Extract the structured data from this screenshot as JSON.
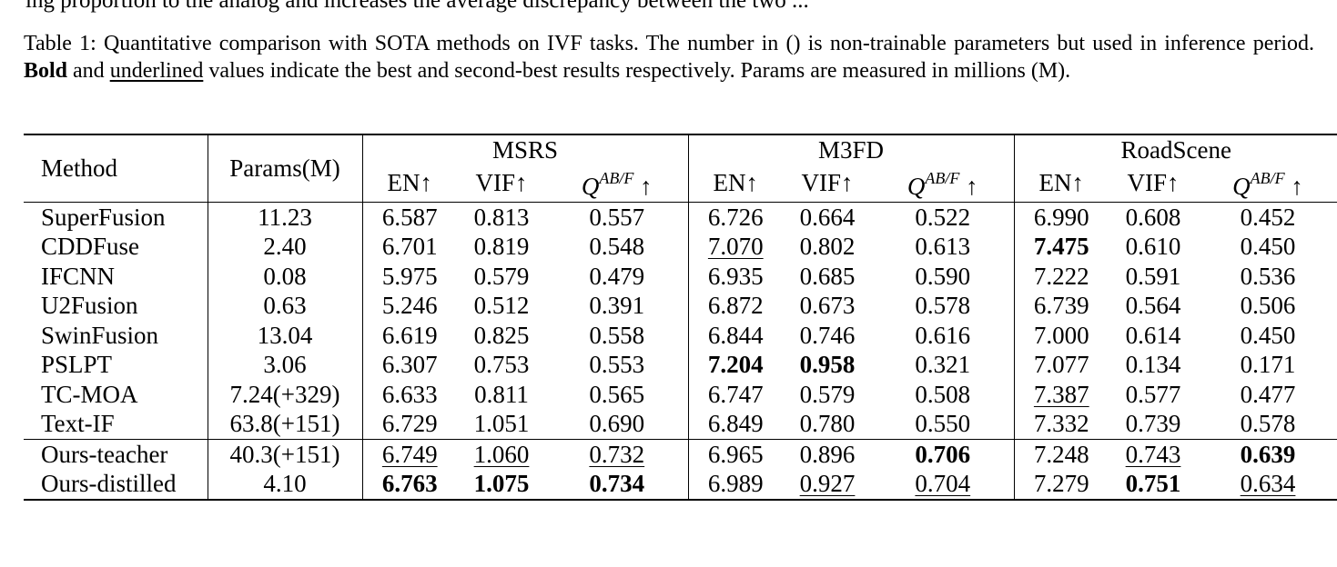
{
  "cropped_prev_line": "ing proportion to the analog and increases the average discrepancy between the two ...",
  "caption": {
    "lines": [
      "Table 1: Quantitative comparison with SOTA methods on IVF tasks. The number in () is non-trainable parameters but used in",
      "inference period.",
      "and",
      "values indicate the best and second-best results respectively. Params are measured in millions",
      "(M)."
    ],
    "bold_word": "Bold",
    "underline_word": "underlined"
  },
  "table": {
    "col_method": "Method",
    "col_params": "Params(M)",
    "datasets": [
      "MSRS",
      "M3FD",
      "RoadScene"
    ],
    "metrics": [
      {
        "label": "EN↑"
      },
      {
        "label": "VIF↑"
      },
      {
        "q": "Q",
        "sup": "AB/F",
        "arrow": " ↑"
      }
    ],
    "rows": [
      {
        "method": "SuperFusion",
        "params": "11.23",
        "values": [
          "6.587",
          "0.813",
          "0.557",
          "6.726",
          "0.664",
          "0.522",
          "6.990",
          "0.608",
          "0.452"
        ],
        "bold": [],
        "underline": []
      },
      {
        "method": "CDDFuse",
        "params": "2.40",
        "values": [
          "6.701",
          "0.819",
          "0.548",
          "7.070",
          "0.802",
          "0.613",
          "7.475",
          "0.610",
          "0.450"
        ],
        "bold": [
          6
        ],
        "underline": [
          3
        ]
      },
      {
        "method": "IFCNN",
        "params": "0.08",
        "values": [
          "5.975",
          "0.579",
          "0.479",
          "6.935",
          "0.685",
          "0.590",
          "7.222",
          "0.591",
          "0.536"
        ],
        "bold": [],
        "underline": []
      },
      {
        "method": "U2Fusion",
        "params": "0.63",
        "values": [
          "5.246",
          "0.512",
          "0.391",
          "6.872",
          "0.673",
          "0.578",
          "6.739",
          "0.564",
          "0.506"
        ],
        "bold": [],
        "underline": []
      },
      {
        "method": "SwinFusion",
        "params": "13.04",
        "values": [
          "6.619",
          "0.825",
          "0.558",
          "6.844",
          "0.746",
          "0.616",
          "7.000",
          "0.614",
          "0.450"
        ],
        "bold": [],
        "underline": []
      },
      {
        "method": "PSLPT",
        "params": "3.06",
        "values": [
          "6.307",
          "0.753",
          "0.553",
          "7.204",
          "0.958",
          "0.321",
          "7.077",
          "0.134",
          "0.171"
        ],
        "bold": [
          3,
          4
        ],
        "underline": []
      },
      {
        "method": "TC-MOA",
        "params": "7.24(+329)",
        "values": [
          "6.633",
          "0.811",
          "0.565",
          "6.747",
          "0.579",
          "0.508",
          "7.387",
          "0.577",
          "0.477"
        ],
        "bold": [],
        "underline": [
          6
        ]
      },
      {
        "method": "Text-IF",
        "params": "63.8(+151)",
        "values": [
          "6.729",
          "1.051",
          "0.690",
          "6.849",
          "0.780",
          "0.550",
          "7.332",
          "0.739",
          "0.578"
        ],
        "bold": [],
        "underline": []
      },
      {
        "method": "Ours-teacher",
        "params": "40.3(+151)",
        "values": [
          "6.749",
          "1.060",
          "0.732",
          "6.965",
          "0.896",
          "0.706",
          "7.248",
          "0.743",
          "0.639"
        ],
        "bold": [
          5,
          8
        ],
        "underline": [
          0,
          1,
          2,
          7
        ]
      },
      {
        "method": "Ours-distilled",
        "params": "4.10",
        "values": [
          "6.763",
          "1.075",
          "0.734",
          "6.989",
          "0.927",
          "0.704",
          "7.279",
          "0.751",
          "0.634"
        ],
        "bold": [
          0,
          1,
          2,
          7
        ],
        "underline": [
          4,
          5,
          8
        ]
      }
    ]
  }
}
